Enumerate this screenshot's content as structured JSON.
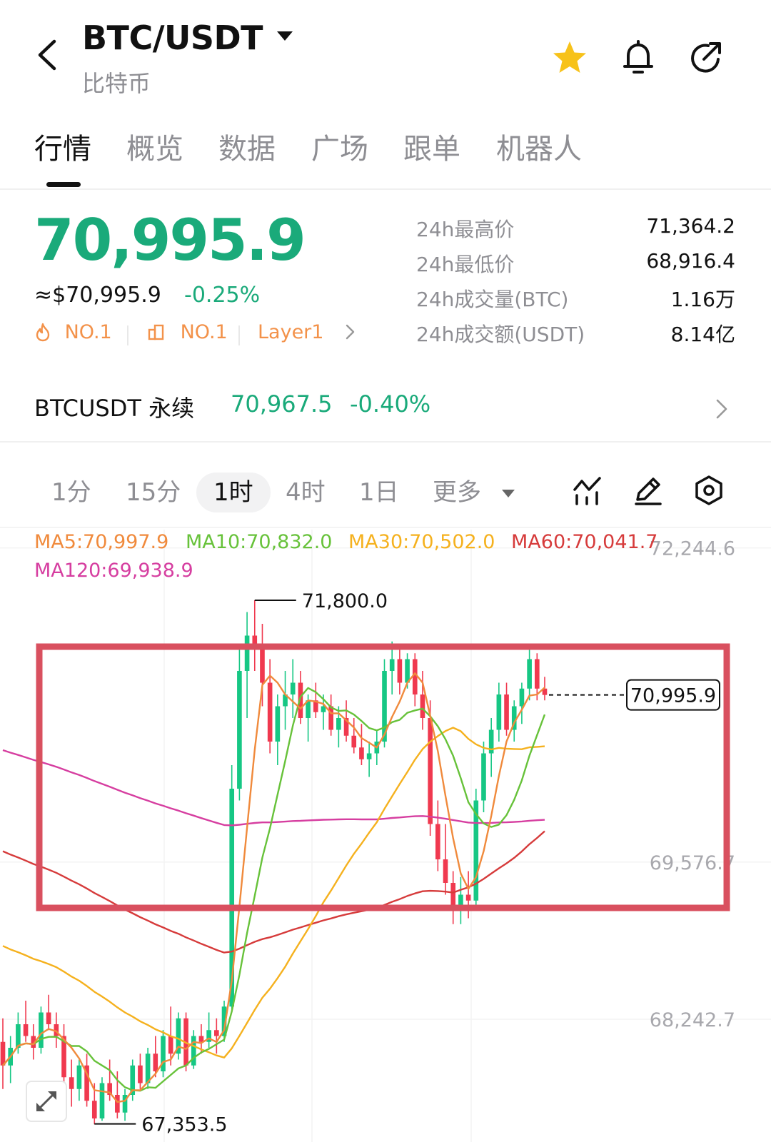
{
  "header": {
    "pair": "BTC/USDT",
    "subtitle": "比特币",
    "icons": [
      "back-arrow-icon",
      "star-icon",
      "bell-icon",
      "share-icon"
    ],
    "star_color": "#f7c21a"
  },
  "tabs": [
    {
      "label": "行情",
      "active": true
    },
    {
      "label": "概览"
    },
    {
      "label": "数据"
    },
    {
      "label": "广场"
    },
    {
      "label": "跟单"
    },
    {
      "label": "机器人"
    }
  ],
  "ticker": {
    "price": "70,995.9",
    "fiat_price": "≈$70,995.9",
    "change": "-0.25%",
    "badges": {
      "hot_rank": "NO.1",
      "cap_rank": "NO.1",
      "category": "Layer1"
    },
    "stats": [
      {
        "label": "24h最高价",
        "value": "71,364.2"
      },
      {
        "label": "24h最低价",
        "value": "68,916.4"
      },
      {
        "label": "24h成交量(BTC)",
        "value": "1.16万"
      },
      {
        "label": "24h成交额(USDT)",
        "value": "8.14亿"
      }
    ]
  },
  "perpetual": {
    "name": "BTCUSDT 永续",
    "price": "70,967.5",
    "change": "-0.40%"
  },
  "intervals": [
    {
      "label": "1分"
    },
    {
      "label": "15分"
    },
    {
      "label": "1时",
      "active": true
    },
    {
      "label": "4时"
    },
    {
      "label": "1日"
    },
    {
      "label": "更多"
    }
  ],
  "tools": [
    "indicator-icon",
    "draw-pencil-icon",
    "settings-hex-icon",
    "expand-icon"
  ],
  "colors": {
    "up": "#1aaa7a",
    "candle_up": "#16c784",
    "candle_down": "#f0394f",
    "highlight_box": "#d9505f",
    "badge": "#f3924a"
  },
  "chart_data": {
    "type": "candlestick",
    "interval": "1时",
    "ma_legend": [
      {
        "name": "MA5",
        "text": "MA5:70,997.9",
        "value": 70997.9,
        "color": "#f08a3c"
      },
      {
        "name": "MA10",
        "text": "MA10:70,832.0",
        "value": 70832.0,
        "color": "#67c23a"
      },
      {
        "name": "MA30",
        "text": "MA30:70,502.0",
        "value": 70502.0,
        "color": "#f5b11e"
      },
      {
        "name": "MA60",
        "text": "MA60:70,041.7",
        "value": 70041.7,
        "color": "#d63b3b"
      },
      {
        "name": "MA120",
        "text": "MA120:69,938.9",
        "value": 69938.9,
        "color": "#d63ea0"
      }
    ],
    "y_ticks": [
      {
        "label": "72,244.6",
        "value": 72244.6
      },
      {
        "label": "69,576.7",
        "value": 69576.7
      },
      {
        "label": "68,242.7",
        "value": 68242.7
      }
    ],
    "high_marker": {
      "label": "71,800.0",
      "value": 71800.0
    },
    "low_marker": {
      "label": "67,353.5",
      "value": 67353.5
    },
    "last_price": {
      "label": "70,995.9",
      "value": 70995.9
    },
    "ylim": [
      67200,
      72400
    ],
    "ohlc": [
      [
        68050,
        68250,
        67650,
        67850
      ],
      [
        67850,
        68100,
        67700,
        68000
      ],
      [
        68000,
        68300,
        67950,
        68200
      ],
      [
        68200,
        68400,
        68050,
        68100
      ],
      [
        68100,
        68200,
        67900,
        68000
      ],
      [
        68000,
        68350,
        67950,
        68300
      ],
      [
        68300,
        68450,
        68150,
        68200
      ],
      [
        68200,
        68300,
        68000,
        68100
      ],
      [
        68100,
        68200,
        67650,
        67750
      ],
      [
        67750,
        67900,
        67500,
        67650
      ],
      [
        67650,
        67900,
        67550,
        67850
      ],
      [
        67850,
        67950,
        67500,
        67550
      ],
      [
        67550,
        67700,
        67350,
        67400
      ],
      [
        67400,
        67750,
        67380,
        67700
      ],
      [
        67700,
        67900,
        67550,
        67600
      ],
      [
        67600,
        67800,
        67400,
        67450
      ],
      [
        67450,
        67650,
        67380,
        67600
      ],
      [
        67600,
        67900,
        67550,
        67850
      ],
      [
        67850,
        67950,
        67650,
        67700
      ],
      [
        67700,
        68000,
        67650,
        67950
      ],
      [
        67950,
        68100,
        67750,
        67800
      ],
      [
        67800,
        68150,
        67750,
        68100
      ],
      [
        68100,
        68350,
        67850,
        67950
      ],
      [
        67950,
        68300,
        67900,
        68250
      ],
      [
        68250,
        68300,
        67800,
        67850
      ],
      [
        67850,
        68150,
        67820,
        68100
      ],
      [
        68100,
        68200,
        67950,
        68050
      ],
      [
        68050,
        68300,
        68000,
        68150
      ],
      [
        68150,
        68250,
        67950,
        68100
      ],
      [
        68100,
        68400,
        68050,
        68350
      ],
      [
        68350,
        70400,
        68300,
        70200
      ],
      [
        70200,
        71400,
        70100,
        71200
      ],
      [
        71200,
        71700,
        70800,
        71500
      ],
      [
        71500,
        71800,
        71200,
        71400
      ],
      [
        71400,
        71600,
        70900,
        71100
      ],
      [
        71100,
        71300,
        70500,
        70600
      ],
      [
        70600,
        71000,
        70400,
        70900
      ],
      [
        70900,
        71200,
        70700,
        71000
      ],
      [
        71000,
        71300,
        70800,
        71100
      ],
      [
        71100,
        71200,
        70750,
        70800
      ],
      [
        70800,
        71000,
        70600,
        70950
      ],
      [
        70950,
        71100,
        70800,
        70850
      ],
      [
        70850,
        71000,
        70700,
        70900
      ],
      [
        70900,
        71000,
        70650,
        70700
      ],
      [
        70700,
        70900,
        70550,
        70800
      ],
      [
        70800,
        70950,
        70600,
        70650
      ],
      [
        70650,
        70800,
        70500,
        70550
      ],
      [
        70550,
        70750,
        70400,
        70450
      ],
      [
        70450,
        70600,
        70300,
        70500
      ],
      [
        70500,
        70700,
        70400,
        70600
      ],
      [
        70600,
        71300,
        70550,
        71200
      ],
      [
        71200,
        71450,
        71000,
        71300
      ],
      [
        71300,
        71400,
        71000,
        71100
      ],
      [
        71100,
        71350,
        71050,
        71300
      ],
      [
        71300,
        71350,
        70900,
        71000
      ],
      [
        71000,
        71200,
        70700,
        70800
      ],
      [
        70800,
        70950,
        69800,
        69900
      ],
      [
        69900,
        70100,
        69500,
        69600
      ],
      [
        69600,
        69900,
        69300,
        69400
      ],
      [
        69400,
        69500,
        69050,
        69200
      ],
      [
        69200,
        69450,
        69050,
        69300
      ],
      [
        69300,
        69500,
        69100,
        69250
      ],
      [
        69250,
        70200,
        69200,
        70100
      ],
      [
        70100,
        70600,
        70000,
        70500
      ],
      [
        70500,
        70800,
        70300,
        70700
      ],
      [
        70700,
        71100,
        70600,
        71000
      ],
      [
        71000,
        71100,
        70650,
        70700
      ],
      [
        70700,
        70950,
        70600,
        70900
      ],
      [
        70900,
        71100,
        70750,
        71050
      ],
      [
        71050,
        71400,
        70950,
        71300
      ],
      [
        71300,
        71350,
        70950,
        71050
      ],
      [
        71050,
        71150,
        70950,
        70996
      ]
    ]
  }
}
